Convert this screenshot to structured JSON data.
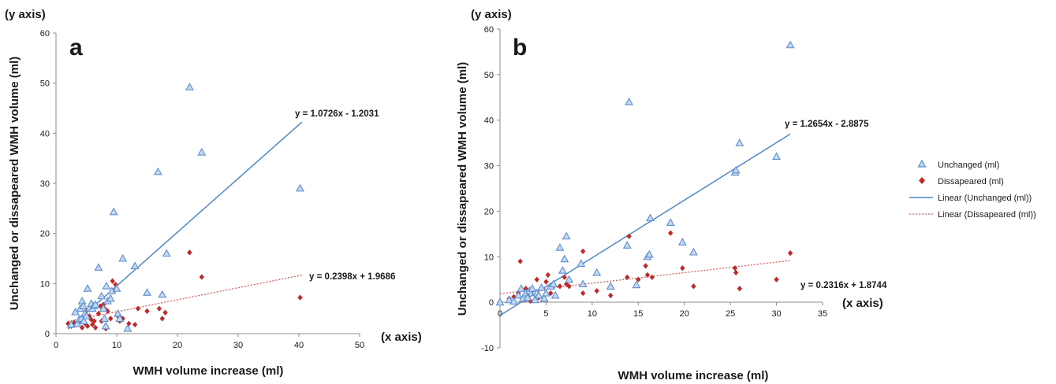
{
  "colors": {
    "unchanged": "#5b8fd1",
    "unchanged_fill": "#c5d9f1",
    "disappeared": "#c0282a",
    "trend_unchanged": "#4f86c6",
    "trend_disappeared": "#e05a5a",
    "axis": "#8c8c8c",
    "text": "#1a1a1a"
  },
  "legend": {
    "unchanged": "Unchanged (ml)",
    "disappeared": "Dissapeared (ml)",
    "linear_unchanged": "Linear (Unchanged (ml))",
    "linear_disappeared": "Linear (Dissapeared (ml))"
  },
  "chart_data": [
    {
      "panel": "a",
      "type": "scatter",
      "y_axis_tag": "(y axis)",
      "x_axis_tag": "(x axis)",
      "xlabel": "WMH volume increase (ml)",
      "ylabel": "Unchanged or dissapeared WMH volume (ml)",
      "xlim": [
        0,
        50
      ],
      "ylim": [
        0,
        60
      ],
      "xticks": [
        0,
        10,
        20,
        30,
        40,
        50
      ],
      "yticks": [
        0,
        10,
        20,
        30,
        40,
        50,
        60
      ],
      "grid": false,
      "series": [
        {
          "name": "Unchanged (ml)",
          "marker": "triangle",
          "points": [
            [
              2.5,
              1.8
            ],
            [
              3.2,
              4.3
            ],
            [
              3.5,
              2.0
            ],
            [
              3.8,
              2.8
            ],
            [
              4.0,
              5.0
            ],
            [
              4.2,
              3.0
            ],
            [
              4.3,
              6.5
            ],
            [
              4.5,
              5.5
            ],
            [
              4.6,
              2.5
            ],
            [
              4.8,
              4.0
            ],
            [
              5.0,
              3.5
            ],
            [
              5.2,
              9.0
            ],
            [
              5.5,
              5.0
            ],
            [
              5.8,
              6.0
            ],
            [
              6.0,
              5.0
            ],
            [
              6.2,
              5.5
            ],
            [
              6.5,
              5.8
            ],
            [
              7.0,
              13.2
            ],
            [
              7.5,
              7.5
            ],
            [
              7.8,
              5.0
            ],
            [
              8.0,
              3.0
            ],
            [
              8.2,
              1.5
            ],
            [
              8.3,
              9.5
            ],
            [
              8.5,
              6.5
            ],
            [
              9.0,
              7.0
            ],
            [
              9.2,
              8.5
            ],
            [
              9.5,
              24.3
            ],
            [
              10.0,
              9.0
            ],
            [
              10.2,
              4.0
            ],
            [
              10.5,
              3.0
            ],
            [
              11.0,
              15.0
            ],
            [
              11.8,
              1.0
            ],
            [
              13.0,
              13.5
            ],
            [
              15.0,
              8.2
            ],
            [
              16.8,
              32.3
            ],
            [
              17.5,
              7.8
            ],
            [
              18.2,
              16.0
            ],
            [
              22.0,
              49.2
            ],
            [
              24.0,
              36.2
            ],
            [
              40.2,
              29.0
            ]
          ]
        },
        {
          "name": "Dissapeared (ml)",
          "marker": "diamond",
          "points": [
            [
              2.0,
              2.0
            ],
            [
              2.5,
              1.5
            ],
            [
              3.0,
              2.2
            ],
            [
              3.5,
              1.8
            ],
            [
              4.0,
              2.5
            ],
            [
              4.3,
              1.2
            ],
            [
              4.5,
              3.0
            ],
            [
              4.8,
              2.0
            ],
            [
              5.0,
              4.5
            ],
            [
              5.2,
              1.5
            ],
            [
              5.5,
              3.5
            ],
            [
              5.8,
              2.8
            ],
            [
              6.0,
              1.8
            ],
            [
              6.3,
              2.5
            ],
            [
              6.5,
              1.2
            ],
            [
              7.0,
              4.0
            ],
            [
              7.3,
              5.5
            ],
            [
              7.5,
              2.5
            ],
            [
              7.8,
              5.8
            ],
            [
              8.0,
              5.0
            ],
            [
              8.2,
              1.0
            ],
            [
              8.5,
              4.5
            ],
            [
              9.0,
              3.0
            ],
            [
              9.3,
              10.5
            ],
            [
              9.5,
              8.5
            ],
            [
              9.8,
              9.8
            ],
            [
              10.2,
              3.5
            ],
            [
              10.5,
              2.5
            ],
            [
              11.0,
              3.0
            ],
            [
              12.0,
              2.0
            ],
            [
              13.0,
              1.8
            ],
            [
              13.5,
              5.0
            ],
            [
              15.0,
              4.5
            ],
            [
              17.0,
              5.0
            ],
            [
              17.5,
              3.0
            ],
            [
              18.0,
              4.2
            ],
            [
              22.0,
              16.2
            ],
            [
              24.0,
              11.3
            ],
            [
              40.2,
              7.2
            ]
          ]
        }
      ],
      "trendlines": [
        {
          "name": "Linear (Unchanged (ml))",
          "slope": 1.0726,
          "intercept": -1.2031,
          "x_range": [
            2,
            40.5
          ],
          "equation": "y = 1.0726x - 1.2031"
        },
        {
          "name": "Linear (Dissapeared (ml))",
          "slope": 0.2398,
          "intercept": 1.9686,
          "x_range": [
            2,
            40.5
          ],
          "equation": "y = 0.2398x + 1.9686"
        }
      ]
    },
    {
      "panel": "b",
      "type": "scatter",
      "y_axis_tag": "(y axis)",
      "x_axis_tag": "(x axis)",
      "xlabel": "WMH volume increase (ml)",
      "ylabel": "Unchanged or dissapeared WMH volume (ml)",
      "xlim": [
        0,
        35
      ],
      "ylim": [
        -10,
        60
      ],
      "xticks": [
        0,
        5,
        10,
        15,
        20,
        25,
        30,
        35
      ],
      "yticks": [
        -10,
        0,
        10,
        20,
        30,
        40,
        50,
        60
      ],
      "grid": false,
      "series": [
        {
          "name": "Unchanged (ml)",
          "marker": "triangle",
          "points": [
            [
              0,
              0
            ],
            [
              1.0,
              0.5
            ],
            [
              1.5,
              0.2
            ],
            [
              2.0,
              1.5
            ],
            [
              2.3,
              3.0
            ],
            [
              2.5,
              0.8
            ],
            [
              2.8,
              2.0
            ],
            [
              3.0,
              1.0
            ],
            [
              3.2,
              2.5
            ],
            [
              3.5,
              3.0
            ],
            [
              3.8,
              0.5
            ],
            [
              4.0,
              2.0
            ],
            [
              4.2,
              1.5
            ],
            [
              4.5,
              3.2
            ],
            [
              4.8,
              0.8
            ],
            [
              5.0,
              2.0
            ],
            [
              5.5,
              3.5
            ],
            [
              5.8,
              4.0
            ],
            [
              6.0,
              1.5
            ],
            [
              6.5,
              12.0
            ],
            [
              6.8,
              7.0
            ],
            [
              7.0,
              9.5
            ],
            [
              7.2,
              14.5
            ],
            [
              7.5,
              5.0
            ],
            [
              8.8,
              8.5
            ],
            [
              9.0,
              4.0
            ],
            [
              10.5,
              6.5
            ],
            [
              12.0,
              3.5
            ],
            [
              13.8,
              12.5
            ],
            [
              14.0,
              44.0
            ],
            [
              14.8,
              3.8
            ],
            [
              16.0,
              10.0
            ],
            [
              16.2,
              10.5
            ],
            [
              16.3,
              18.5
            ],
            [
              18.5,
              17.5
            ],
            [
              19.8,
              13.2
            ],
            [
              21.0,
              11.0
            ],
            [
              25.5,
              28.5
            ],
            [
              25.6,
              29.0
            ],
            [
              26.0,
              35.0
            ],
            [
              30.0,
              32.0
            ],
            [
              31.5,
              56.5
            ]
          ]
        },
        {
          "name": "Dissapeared (ml)",
          "marker": "diamond",
          "points": [
            [
              0,
              0
            ],
            [
              1.0,
              0.8
            ],
            [
              1.5,
              1.2
            ],
            [
              2.0,
              2.0
            ],
            [
              2.2,
              9.0
            ],
            [
              2.5,
              0.5
            ],
            [
              2.8,
              3.0
            ],
            [
              3.0,
              1.5
            ],
            [
              3.3,
              0.3
            ],
            [
              3.5,
              2.5
            ],
            [
              4.0,
              5.0
            ],
            [
              4.2,
              1.0
            ],
            [
              4.5,
              3.0
            ],
            [
              5.0,
              4.5
            ],
            [
              5.2,
              6.0
            ],
            [
              5.5,
              2.0
            ],
            [
              6.0,
              1.5
            ],
            [
              6.5,
              3.5
            ],
            [
              7.0,
              5.5
            ],
            [
              7.2,
              4.0
            ],
            [
              7.5,
              3.5
            ],
            [
              9.0,
              11.2
            ],
            [
              9.0,
              2.0
            ],
            [
              10.5,
              2.5
            ],
            [
              12.0,
              1.5
            ],
            [
              13.8,
              5.5
            ],
            [
              14.0,
              14.5
            ],
            [
              15.0,
              5.0
            ],
            [
              15.8,
              8.0
            ],
            [
              16.0,
              6.0
            ],
            [
              16.5,
              5.5
            ],
            [
              18.5,
              15.2
            ],
            [
              19.8,
              7.5
            ],
            [
              21.0,
              3.5
            ],
            [
              25.5,
              7.5
            ],
            [
              25.6,
              6.5
            ],
            [
              26.0,
              3.0
            ],
            [
              30.0,
              5.0
            ],
            [
              31.5,
              10.8
            ]
          ]
        }
      ],
      "trendlines": [
        {
          "name": "Linear (Unchanged (ml))",
          "slope": 1.2654,
          "intercept": -2.8875,
          "x_range": [
            0,
            31.5
          ],
          "equation": "y = 1.2654x - 2.8875"
        },
        {
          "name": "Linear (Dissapeared (ml))",
          "slope": 0.2316,
          "intercept": 1.8744,
          "x_range": [
            0,
            31.5
          ],
          "equation": "y = 0.2316x + 1.8744"
        }
      ]
    }
  ]
}
